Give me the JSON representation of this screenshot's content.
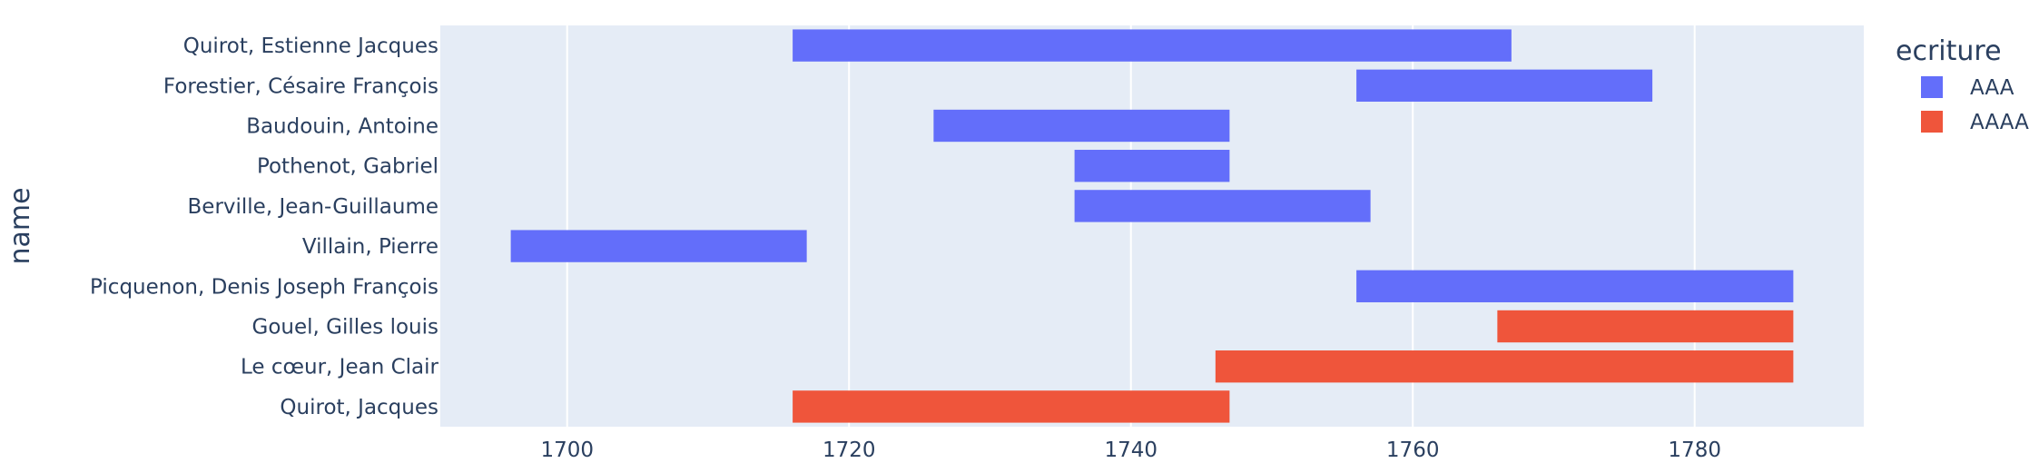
{
  "chart_data": {
    "type": "bar",
    "orientation": "horizontal",
    "title": "",
    "xlabel": "",
    "ylabel": "name",
    "xlim": [
      1691,
      1792
    ],
    "xticks": [
      1700,
      1720,
      1740,
      1760,
      1780
    ],
    "grid": true,
    "legend": {
      "title": "ecriture",
      "position": "top-right",
      "entries": [
        {
          "name": "AAA",
          "color": "#636efa"
        },
        {
          "name": "AAAA",
          "color": "#ef553b"
        }
      ]
    },
    "categories": [
      "Quirot, Estienne Jacques",
      "Forestier, Césaire François",
      "Baudouin, Antoine",
      "Pothenot, Gabriel",
      "Berville, Jean-Guillaume",
      "Villain, Pierre",
      "Picquenon, Denis Joseph François",
      "Gouel, Gilles louis",
      "Le cœur, Jean Clair",
      "Quirot, Jacques"
    ],
    "bars": [
      {
        "name": "Quirot, Estienne Jacques",
        "series": "AAA",
        "start": 1716,
        "end": 1767
      },
      {
        "name": "Forestier, Césaire François",
        "series": "AAA",
        "start": 1756,
        "end": 1777
      },
      {
        "name": "Baudouin, Antoine",
        "series": "AAA",
        "start": 1726,
        "end": 1747
      },
      {
        "name": "Pothenot, Gabriel",
        "series": "AAA",
        "start": 1736,
        "end": 1747
      },
      {
        "name": "Berville, Jean-Guillaume",
        "series": "AAA",
        "start": 1736,
        "end": 1757
      },
      {
        "name": "Villain, Pierre",
        "series": "AAA",
        "start": 1696,
        "end": 1717
      },
      {
        "name": "Picquenon, Denis Joseph François",
        "series": "AAA",
        "start": 1756,
        "end": 1787
      },
      {
        "name": "Gouel, Gilles louis",
        "series": "AAAA",
        "start": 1766,
        "end": 1787
      },
      {
        "name": "Le cœur, Jean Clair",
        "series": "AAAA",
        "start": 1746,
        "end": 1787
      },
      {
        "name": "Quirot, Jacques",
        "series": "AAAA",
        "start": 1716,
        "end": 1747
      }
    ],
    "colors": {
      "plot_background": "#e5ecf6",
      "grid": "#ffffff",
      "text": "#2a3f5f"
    }
  }
}
